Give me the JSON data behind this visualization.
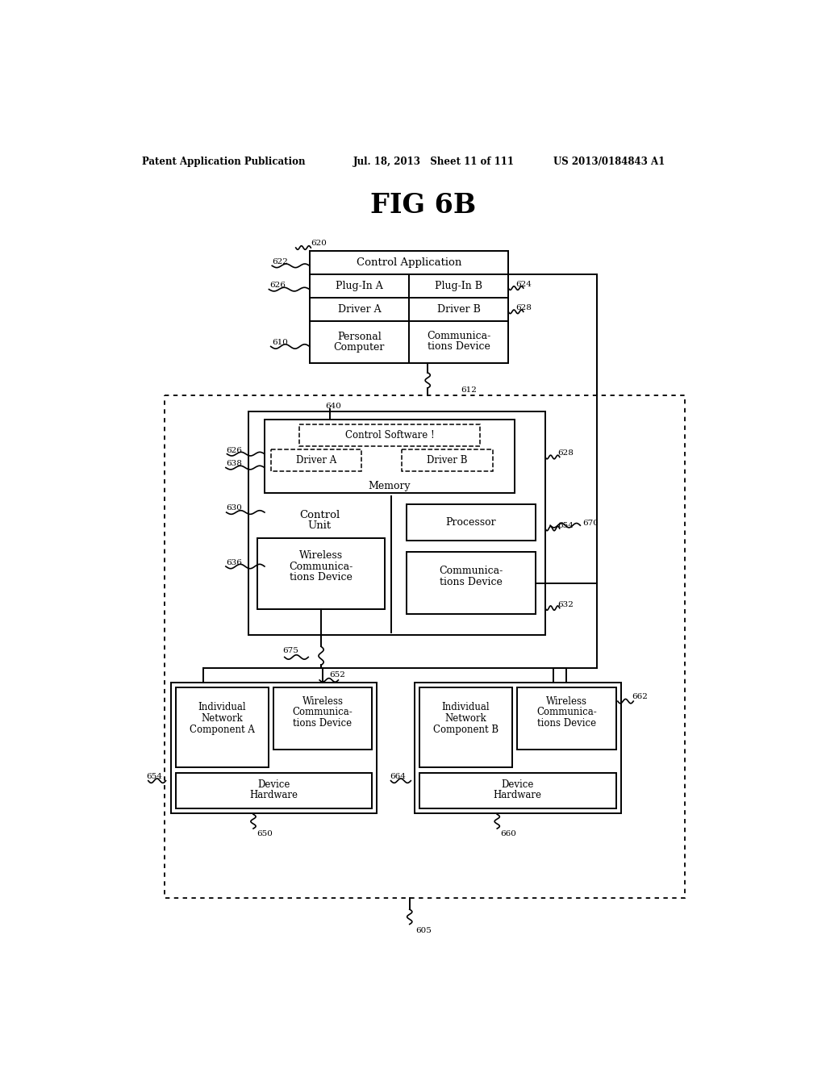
{
  "title": "FIG 6B",
  "header_left": "Patent Application Publication",
  "header_mid": "Jul. 18, 2013   Sheet 11 of 111",
  "header_right": "US 2013/0184843 A1",
  "bg_color": "#ffffff"
}
